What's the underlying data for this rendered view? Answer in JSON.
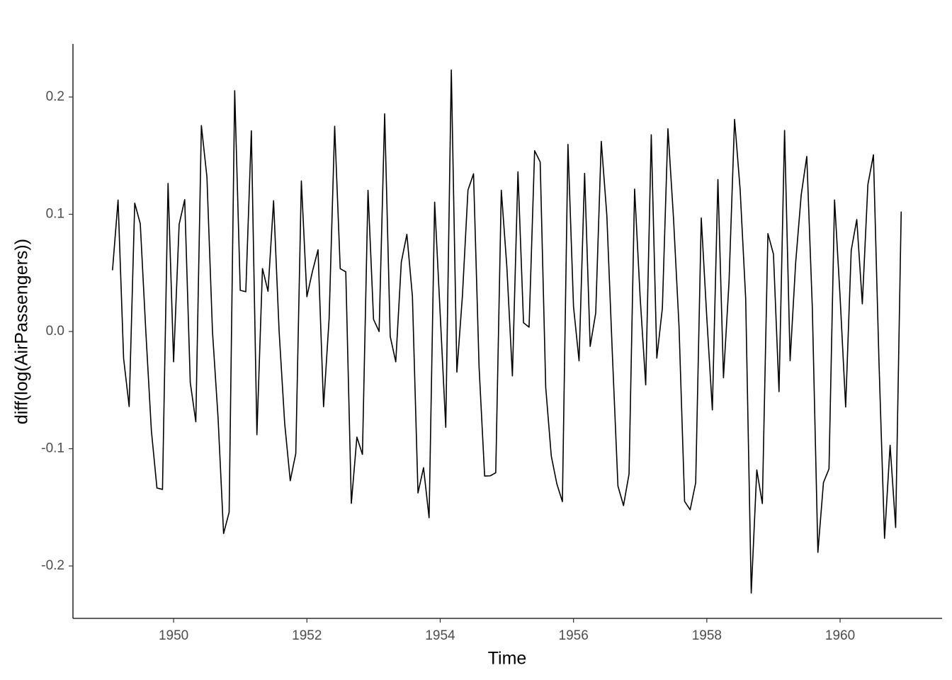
{
  "chart_data": {
    "type": "line",
    "x_label": "Time",
    "y_label": "diff(log(AirPassengers))",
    "xlim": [
      1948.49,
      1961.53
    ],
    "ylim": [
      -0.2447,
      0.2453
    ],
    "xticks": [
      1950,
      1952,
      1954,
      1956,
      1958,
      1960
    ],
    "yticks": [
      -0.2,
      -0.1,
      {
        "value": 0,
        "label": "0.0"
      },
      0.1,
      0.2
    ],
    "color": "#000000",
    "x": [
      1949.0833,
      1949.1667,
      1949.25,
      1949.3333,
      1949.4167,
      1949.5,
      1949.5833,
      1949.6667,
      1949.75,
      1949.8333,
      1949.9167,
      1950,
      1950.0833,
      1950.1667,
      1950.25,
      1950.3333,
      1950.4167,
      1950.5,
      1950.5833,
      1950.6667,
      1950.75,
      1950.8333,
      1950.9167,
      1951,
      1951.0833,
      1951.1667,
      1951.25,
      1951.3333,
      1951.4167,
      1951.5,
      1951.5833,
      1951.6667,
      1951.75,
      1951.8333,
      1951.9167,
      1952,
      1952.0833,
      1952.1667,
      1952.25,
      1952.3333,
      1952.4167,
      1952.5,
      1952.5833,
      1952.6667,
      1952.75,
      1952.8333,
      1952.9167,
      1953,
      1953.0833,
      1953.1667,
      1953.25,
      1953.3333,
      1953.4167,
      1953.5,
      1953.5833,
      1953.6667,
      1953.75,
      1953.8333,
      1953.9167,
      1954,
      1954.0833,
      1954.1667,
      1954.25,
      1954.3333,
      1954.4167,
      1954.5,
      1954.5833,
      1954.6667,
      1954.75,
      1954.8333,
      1954.9167,
      1955,
      1955.0833,
      1955.1667,
      1955.25,
      1955.3333,
      1955.4167,
      1955.5,
      1955.5833,
      1955.6667,
      1955.75,
      1955.8333,
      1955.9167,
      1956,
      1956.0833,
      1956.1667,
      1956.25,
      1956.3333,
      1956.4167,
      1956.5,
      1956.5833,
      1956.6667,
      1956.75,
      1956.8333,
      1956.9167,
      1957,
      1957.0833,
      1957.1667,
      1957.25,
      1957.3333,
      1957.4167,
      1957.5,
      1957.5833,
      1957.6667,
      1957.75,
      1957.8333,
      1957.9167,
      1958,
      1958.0833,
      1958.1667,
      1958.25,
      1958.3333,
      1958.4167,
      1958.5,
      1958.5833,
      1958.6667,
      1958.75,
      1958.8333,
      1958.9167,
      1959,
      1959.0833,
      1959.1667,
      1959.25,
      1959.3333,
      1959.4167,
      1959.5,
      1959.5833,
      1959.6667,
      1959.75,
      1959.8333,
      1959.9167,
      1960,
      1960.0833,
      1960.1667,
      1960.25,
      1960.3333,
      1960.4167,
      1960.5,
      1960.5833,
      1960.6667,
      1960.75,
      1960.8333,
      1960.9167
    ],
    "values": [
      0.0522,
      0.1121,
      -0.023,
      -0.064,
      0.1095,
      0.0919,
      0,
      -0.0846,
      -0.1335,
      -0.1347,
      0.1263,
      -0.0258,
      0.0914,
      0.1125,
      -0.0435,
      -0.077,
      0.1756,
      0.1319,
      0,
      -0.0732,
      -0.1723,
      -0.1542,
      0.2054,
      0.0351,
      0.0339,
      0.1712,
      -0.088,
      0.0537,
      0.0343,
      0.1115,
      0,
      -0.0784,
      -0.1273,
      -0.104,
      0.1284,
      0.0297,
      0.0513,
      0.0697,
      -0.0642,
      0.011,
      0.175,
      0.0536,
      0.0509,
      -0.1466,
      -0.0901,
      -0.1048,
      0.1204,
      0.0103,
      0,
      0.1857,
      -0.0042,
      -0.0259,
      0.0593,
      0.0829,
      0.0299,
      -0.1377,
      -0.1162,
      -0.1589,
      0.1103,
      0.0148,
      -0.0817,
      0.2231,
      -0.0346,
      0.0304,
      0.1206,
      0.1345,
      -0.0303,
      -0.1233,
      -0.1231,
      -0.1205,
      0.1205,
      0.0552,
      -0.0379,
      0.1362,
      0.0075,
      0.0037,
      0.1542,
      0.1446,
      -0.0478,
      -0.1063,
      -0.1299,
      -0.1451,
      0.1596,
      0.0214,
      -0.025,
      0.1349,
      -0.0127,
      0.0158,
      0.1622,
      0.0992,
      -0.0196,
      -0.1318,
      -0.1485,
      -0.1215,
      0.1215,
      0.029,
      -0.0455,
      0.1678,
      -0.0227,
      0.0199,
      0.1729,
      0.097,
      0.0043,
      -0.1449,
      -0.1521,
      -0.129,
      0.0968,
      0.0118,
      -0.0669,
      0.1296,
      -0.0394,
      0.0422,
      0.1809,
      0.1211,
      0.0281,
      -0.2231,
      -0.1181,
      -0.1468,
      0.0835,
      0.066,
      -0.0513,
      0.1715,
      -0.0249,
      0.0588,
      0.1167,
      0.1493,
      0.0199,
      -0.1884,
      -0.1289,
      -0.1172,
      0.1122,
      0.0292,
      -0.0644,
      0.0692,
      0.0955,
      0.0236,
      0.1253,
      0.1507,
      -0.0261,
      -0.1764,
      -0.0971,
      -0.1672,
      0.1023
    ]
  }
}
